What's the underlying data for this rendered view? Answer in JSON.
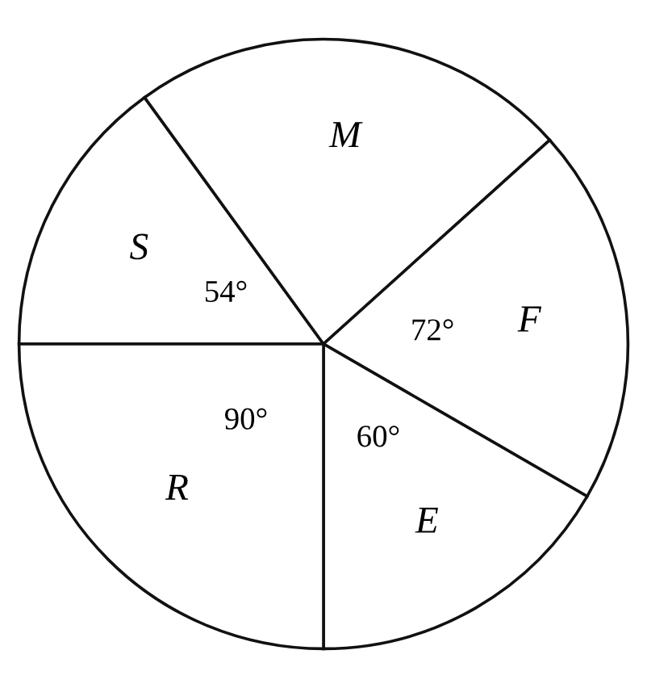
{
  "chart_data": {
    "type": "pie",
    "categories": [
      "S",
      "M",
      "F",
      "E",
      "R"
    ],
    "values": [
      54,
      84,
      72,
      60,
      90
    ],
    "value_labels": [
      "54°",
      null,
      "72°",
      "60°",
      "90°"
    ],
    "colors": [
      "#ffffff",
      "#ffffff",
      "#ffffff",
      "#ffffff",
      "#ffffff"
    ]
  }
}
